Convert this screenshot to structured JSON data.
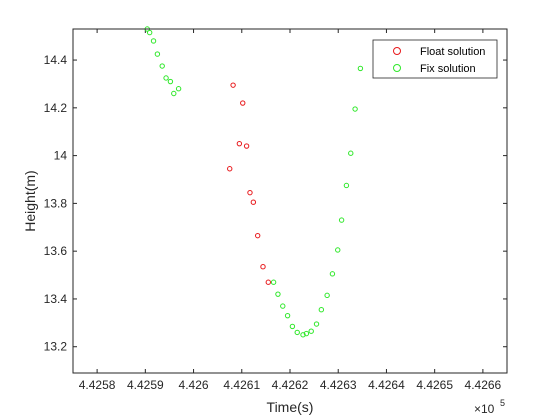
{
  "chart_data": {
    "type": "scatter",
    "title": "",
    "xlabel": "Time(s)",
    "ylabel": "Height(m)",
    "x_exponent_label": "×10",
    "x_exponent_power": "5",
    "xlim": [
      442575,
      442665
    ],
    "ylim": [
      13.09,
      14.53
    ],
    "x_scale_divisor": 100000,
    "xticks": [
      442580,
      442590,
      442600,
      442610,
      442620,
      442630,
      442640,
      442650,
      442660
    ],
    "xtick_labels": [
      "4.4258",
      "4.4259",
      "4.426",
      "4.4261",
      "4.4262",
      "4.4263",
      "4.4264",
      "4.4265",
      "4.4266"
    ],
    "yticks": [
      13.2,
      13.4,
      13.6,
      13.8,
      14.0,
      14.2,
      14.4
    ],
    "ytick_labels": [
      "13.2",
      "13.4",
      "13.6",
      "13.8",
      "14",
      "14.2",
      "14.4"
    ],
    "grid": false,
    "legend_position": "top-right",
    "series": [
      {
        "name": "Float solution",
        "color": "#e8191c",
        "marker": "circle-open",
        "points": [
          [
            442607.5,
            13.945
          ],
          [
            442608.2,
            14.295
          ],
          [
            442609.5,
            14.05
          ],
          [
            442610.2,
            14.22
          ],
          [
            442611.0,
            14.04
          ],
          [
            442611.7,
            13.845
          ],
          [
            442612.4,
            13.805
          ],
          [
            442613.3,
            13.665
          ],
          [
            442614.4,
            13.535
          ],
          [
            442615.5,
            13.47
          ]
        ]
      },
      {
        "name": "Fix solution",
        "color": "#2fe82a",
        "marker": "circle-open",
        "points": [
          [
            442590.4,
            14.53
          ],
          [
            442590.9,
            14.515
          ],
          [
            442591.7,
            14.48
          ],
          [
            442592.5,
            14.425
          ],
          [
            442593.5,
            14.375
          ],
          [
            442594.3,
            14.325
          ],
          [
            442595.2,
            14.31
          ],
          [
            442595.9,
            14.26
          ],
          [
            442596.9,
            14.28
          ],
          [
            442616.6,
            13.47
          ],
          [
            442617.5,
            13.42
          ],
          [
            442618.5,
            13.37
          ],
          [
            442619.5,
            13.33
          ],
          [
            442620.5,
            13.285
          ],
          [
            442621.5,
            13.26
          ],
          [
            442622.7,
            13.25
          ],
          [
            442623.4,
            13.255
          ],
          [
            442624.4,
            13.265
          ],
          [
            442625.5,
            13.295
          ],
          [
            442626.5,
            13.355
          ],
          [
            442627.7,
            13.415
          ],
          [
            442628.8,
            13.505
          ],
          [
            442629.9,
            13.605
          ],
          [
            442630.7,
            13.73
          ],
          [
            442631.7,
            13.875
          ],
          [
            442632.6,
            14.01
          ],
          [
            442633.5,
            14.195
          ],
          [
            442634.6,
            14.365
          ]
        ]
      }
    ]
  }
}
